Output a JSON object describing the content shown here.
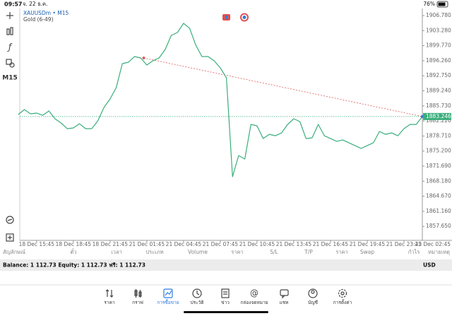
{
  "status_bar": {
    "time": "09:57",
    "date": "จ. 22 ธ.ค.",
    "battery": "76%"
  },
  "toolbar_timeframe": "M15",
  "chart_data": {
    "type": "line",
    "title": "XAUUSDm • M15",
    "subtitle": "Gold (6-49)",
    "xlim": [
      -5.5,
      126
    ],
    "xticks": [
      {
        "value": 0,
        "label": "18 Dec 15:45"
      },
      {
        "value": 12,
        "label": "18 Dec 18:45"
      },
      {
        "value": 24,
        "label": "18 Dec 21:45"
      },
      {
        "value": 36,
        "label": "21 Dec 01:45"
      },
      {
        "value": 48,
        "label": "21 Dec 04:45"
      },
      {
        "value": 60,
        "label": "21 Dec 07:45"
      },
      {
        "value": 72,
        "label": "21 Dec 10:45"
      },
      {
        "value": 84,
        "label": "21 Dec 13:45"
      },
      {
        "value": 96,
        "label": "21 Dec 16:45"
      },
      {
        "value": 108,
        "label": "21 Dec 19:45"
      },
      {
        "value": 120,
        "label": "21 Dec 23:45"
      },
      {
        "value": 132,
        "label": "22 Dec 02:45"
      }
    ],
    "ylim": [
      1854.39,
      1908.43
    ],
    "yticks": [
      {
        "value": 1906.78,
        "label": "1906.780"
      },
      {
        "value": 1903.28,
        "label": "1903.280"
      },
      {
        "value": 1899.77,
        "label": "1899.770"
      },
      {
        "value": 1896.26,
        "label": "1896.260"
      },
      {
        "value": 1892.75,
        "label": "1892.750"
      },
      {
        "value": 1889.24,
        "label": "1889.240"
      },
      {
        "value": 1885.73,
        "label": "1885.730"
      },
      {
        "value": 1882.22,
        "label": "1882.220"
      },
      {
        "value": 1878.71,
        "label": "1878.710"
      },
      {
        "value": 1875.2,
        "label": "1875.200"
      },
      {
        "value": 1871.69,
        "label": "1871.690"
      },
      {
        "value": 1868.18,
        "label": "1868.180"
      },
      {
        "value": 1864.67,
        "label": "1864.670"
      },
      {
        "value": 1861.16,
        "label": "1861.160"
      },
      {
        "value": 1857.65,
        "label": "1857.650"
      }
    ],
    "series": [
      {
        "color": "#3aae7c",
        "x": [
          -6,
          -4,
          -2,
          0,
          2,
          4,
          6,
          8,
          10,
          12,
          14,
          16,
          18,
          20,
          22,
          24,
          26,
          28,
          30,
          32,
          34,
          36,
          38,
          40,
          42,
          44,
          46,
          48,
          50,
          52,
          54,
          56,
          58,
          60,
          62,
          64,
          66,
          68,
          70,
          72,
          74,
          76,
          78,
          80,
          82,
          84,
          86,
          88,
          90,
          92,
          94,
          96,
          98,
          100,
          102,
          104,
          106,
          108,
          110,
          112,
          114,
          116,
          118,
          120,
          122,
          124,
          126
        ],
        "values": [
          1883.72,
          1884.87,
          1883.88,
          1884.05,
          1883.55,
          1884.54,
          1882.73,
          1881.74,
          1880.42,
          1880.59,
          1881.57,
          1880.42,
          1880.42,
          1882.23,
          1885.36,
          1887.34,
          1889.98,
          1895.58,
          1895.91,
          1897.23,
          1896.9,
          1895.25,
          1896.24,
          1896.9,
          1898.87,
          1902.17,
          1902.83,
          1904.97,
          1903.81,
          1899.86,
          1897.23,
          1897.23,
          1896.24,
          1894.59,
          1892.28,
          1869.22,
          1874.16,
          1873.34,
          1881.41,
          1881.08,
          1878.12,
          1879.1,
          1878.77,
          1879.43,
          1881.41,
          1882.73,
          1882.07,
          1878.12,
          1878.28,
          1881.41,
          1878.77,
          1878.12,
          1877.46,
          1877.79,
          1877.13,
          1876.47,
          1875.81,
          1876.47,
          1877.13,
          1879.76,
          1879.1,
          1879.43,
          1878.77,
          1880.42,
          1881.41,
          1881.41,
          1883.246
        ]
      }
    ],
    "trendline": {
      "color": "#e05a5a",
      "x": [
        35,
        126
      ],
      "values": [
        1896.9,
        1883.246
      ]
    },
    "current_price": 1883.246,
    "current_price_color": "#3aae7c",
    "grid": false
  },
  "table_header": [
    "สัญลักษณ์",
    "ตั๋ว",
    "เวลา",
    "ประเภท",
    "Volume",
    "ราคา",
    "S/L",
    "T/P",
    "ราคา",
    "Swap",
    "กำไร",
    "หมายเหตุ"
  ],
  "account": {
    "balance_label": "Balance:",
    "balance": "1 112.73",
    "equity_label": "Equity:",
    "equity": "1 112.73",
    "free_label": "ฟรี:",
    "free": "1 112.73",
    "currency": "USD"
  },
  "nav": [
    "ราคา",
    "กราฟ",
    "การซื้อขาย",
    "ประวัติ",
    "ข่าว",
    "กล่องจดหมาย",
    "แชท",
    "บัญชี",
    "การตั้งค่า"
  ]
}
